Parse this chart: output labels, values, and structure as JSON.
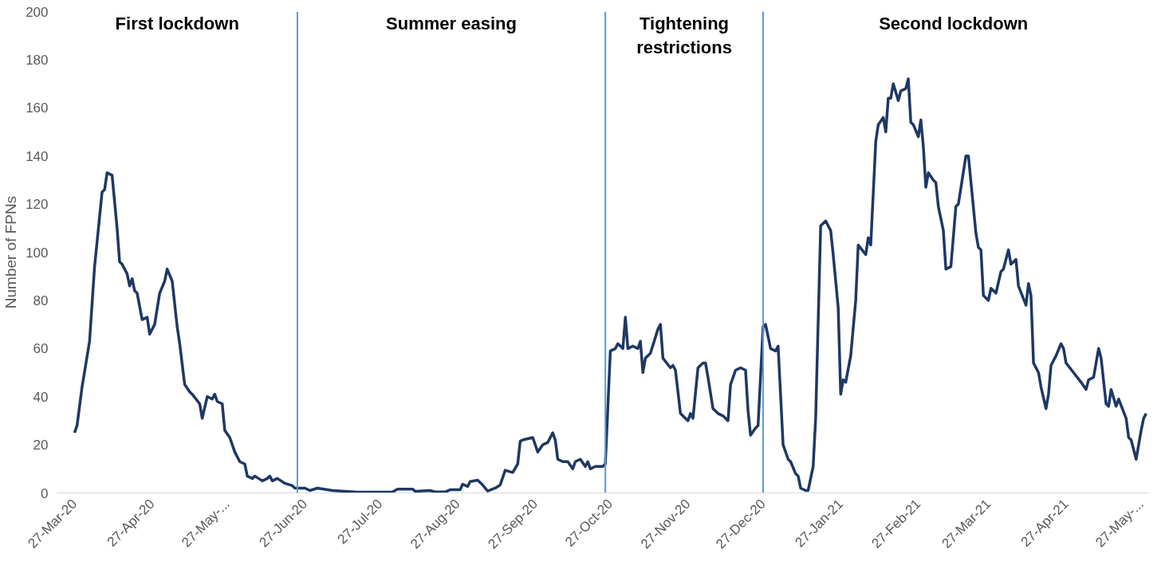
{
  "chart_data": {
    "type": "line",
    "ylabel": "Number of FPNs",
    "x": [
      "2020-03-27",
      "2020-03-28",
      "2020-03-30",
      "2020-04-02",
      "2020-04-04",
      "2020-04-07",
      "2020-04-08",
      "2020-04-09",
      "2020-04-11",
      "2020-04-13",
      "2020-04-14",
      "2020-04-15",
      "2020-04-17",
      "2020-04-18",
      "2020-04-19",
      "2020-04-20",
      "2020-04-21",
      "2020-04-23",
      "2020-04-25",
      "2020-04-26",
      "2020-04-28",
      "2020-04-30",
      "2020-05-02",
      "2020-05-03",
      "2020-05-05",
      "2020-05-07",
      "2020-05-08",
      "2020-05-10",
      "2020-05-12",
      "2020-05-13",
      "2020-05-16",
      "2020-05-17",
      "2020-05-19",
      "2020-05-21",
      "2020-05-22",
      "2020-05-23",
      "2020-05-25",
      "2020-05-26",
      "2020-05-28",
      "2020-05-30",
      "2020-06-01",
      "2020-06-03",
      "2020-06-04",
      "2020-06-06",
      "2020-06-07",
      "2020-06-10",
      "2020-06-12",
      "2020-06-13",
      "2020-06-14",
      "2020-06-16",
      "2020-06-19",
      "2020-06-22",
      "2020-06-23",
      "2020-06-27",
      "2020-06-29",
      "2020-07-02",
      "2020-07-08",
      "2020-07-17",
      "2020-07-30",
      "2020-08-01",
      "2020-08-03",
      "2020-08-09",
      "2020-08-10",
      "2020-08-16",
      "2020-08-18",
      "2020-08-22",
      "2020-08-24",
      "2020-08-28",
      "2020-08-29",
      "2020-08-31",
      "2020-09-01",
      "2020-09-04",
      "2020-09-06",
      "2020-09-08",
      "2020-09-11",
      "2020-09-13",
      "2020-09-15",
      "2020-09-18",
      "2020-09-20",
      "2020-09-21",
      "2020-09-22",
      "2020-09-26",
      "2020-09-28",
      "2020-09-30",
      "2020-10-02",
      "2020-10-04",
      "2020-10-05",
      "2020-10-06",
      "2020-10-08",
      "2020-10-10",
      "2020-10-12",
      "2020-10-13",
      "2020-10-15",
      "2020-10-17",
      "2020-10-18",
      "2020-10-19",
      "2020-10-21",
      "2020-10-24",
      "2020-10-25",
      "2020-10-27",
      "2020-10-29",
      "2020-10-30",
      "2020-11-01",
      "2020-11-02",
      "2020-11-03",
      "2020-11-05",
      "2020-11-07",
      "2020-11-08",
      "2020-11-09",
      "2020-11-10",
      "2020-11-12",
      "2020-11-15",
      "2020-11-16",
      "2020-11-17",
      "2020-11-20",
      "2020-11-21",
      "2020-11-22",
      "2020-11-24",
      "2020-11-27",
      "2020-11-28",
      "2020-11-29",
      "2020-12-01",
      "2020-12-03",
      "2020-12-04",
      "2020-12-05",
      "2020-12-07",
      "2020-12-09",
      "2020-12-11",
      "2020-12-13",
      "2020-12-14",
      "2020-12-16",
      "2020-12-18",
      "2020-12-20",
      "2020-12-21",
      "2020-12-22",
      "2020-12-24",
      "2020-12-25",
      "2020-12-27",
      "2020-12-28",
      "2020-12-30",
      "2021-01-01",
      "2021-01-02",
      "2021-01-04",
      "2021-01-06",
      "2021-01-07",
      "2021-01-09",
      "2021-01-10",
      "2021-01-11",
      "2021-01-13",
      "2021-01-14",
      "2021-01-16",
      "2021-01-17",
      "2021-01-19",
      "2021-01-21",
      "2021-01-23",
      "2021-01-24",
      "2021-01-26",
      "2021-01-27",
      "2021-01-28",
      "2021-01-29",
      "2021-01-31",
      "2021-02-02",
      "2021-02-03",
      "2021-02-06",
      "2021-02-07",
      "2021-02-08",
      "2021-02-10",
      "2021-02-11",
      "2021-02-13",
      "2021-02-14",
      "2021-02-15",
      "2021-02-16",
      "2021-02-17",
      "2021-02-19",
      "2021-02-20",
      "2021-02-22",
      "2021-02-23",
      "2021-02-24",
      "2021-02-25",
      "2021-02-27",
      "2021-02-28",
      "2021-03-01",
      "2021-03-02",
      "2021-03-03",
      "2021-03-05",
      "2021-03-06",
      "2021-03-07",
      "2021-03-09",
      "2021-03-10",
      "2021-03-12",
      "2021-03-14",
      "2021-03-15",
      "2021-03-18",
      "2021-03-19",
      "2021-03-22",
      "2021-03-23",
      "2021-03-24",
      "2021-03-25",
      "2021-03-27",
      "2021-03-28",
      "2021-03-30",
      "2021-04-01",
      "2021-04-02",
      "2021-04-04",
      "2021-04-05",
      "2021-04-07",
      "2021-04-08",
      "2021-04-11",
      "2021-04-12",
      "2021-04-13",
      "2021-04-14",
      "2021-04-16",
      "2021-04-17",
      "2021-04-19",
      "2021-04-20",
      "2021-04-21",
      "2021-04-23",
      "2021-04-25",
      "2021-04-26",
      "2021-04-27",
      "2021-04-30",
      "2021-05-03",
      "2021-05-05",
      "2021-05-06",
      "2021-05-08",
      "2021-05-10",
      "2021-05-11",
      "2021-05-13",
      "2021-05-14",
      "2021-05-15",
      "2021-05-17",
      "2021-05-18",
      "2021-05-21",
      "2021-05-22",
      "2021-05-23",
      "2021-05-25",
      "2021-05-27",
      "2021-05-28",
      "2021-05-29"
    ],
    "series": [
      {
        "color": "#1f3864",
        "values": [
          25,
          28,
          44,
          63,
          94,
          125,
          126,
          133,
          132,
          110,
          96,
          95,
          91,
          86,
          89,
          84,
          83,
          72,
          73,
          66,
          70,
          83,
          88,
          93,
          88,
          69,
          62,
          45,
          42,
          41,
          37,
          31,
          40,
          39,
          41,
          38,
          37,
          26,
          23,
          17,
          13,
          12,
          7,
          6,
          7,
          5,
          6,
          7,
          5,
          6,
          4,
          3,
          2,
          2,
          1,
          2,
          1,
          0.4,
          0.3,
          0.4,
          1.6,
          1.6,
          0.7,
          1,
          0.4,
          0.4,
          1.3,
          1.3,
          3.6,
          2.7,
          4.7,
          5.3,
          3.3,
          0.8,
          2,
          3.3,
          9.4,
          8.5,
          12,
          21.5,
          22,
          23,
          17,
          20,
          21,
          25,
          22,
          14,
          13,
          13,
          10,
          13,
          14,
          11,
          13,
          10,
          11,
          11,
          12,
          59,
          60,
          62,
          60,
          73,
          60,
          61,
          60,
          63,
          50,
          56,
          58,
          68,
          70,
          56,
          52,
          53,
          51,
          33,
          30,
          33,
          31,
          52,
          54,
          54,
          48,
          35,
          33,
          32,
          30,
          45,
          51,
          52,
          51,
          34,
          24,
          27,
          28,
          69,
          70,
          60,
          59,
          61,
          20,
          14,
          13,
          8,
          7,
          2,
          1,
          1,
          11,
          31,
          111,
          113,
          109,
          99,
          77,
          41,
          47,
          46,
          57,
          80,
          103,
          99,
          106,
          103,
          146,
          153,
          156,
          150,
          164,
          164,
          170,
          163,
          167,
          168,
          172,
          154,
          153,
          148,
          155,
          144,
          127,
          133,
          130,
          129,
          119,
          109,
          93,
          94,
          119,
          120,
          140,
          140,
          108,
          102,
          101,
          82,
          80,
          85,
          83,
          92,
          93,
          101,
          95,
          97,
          86,
          78,
          87,
          82,
          54,
          50,
          44,
          35,
          41,
          53,
          57,
          62,
          60,
          54,
          50,
          46,
          43,
          47,
          48,
          60,
          56,
          37,
          36,
          43,
          36,
          39,
          31,
          23,
          22,
          14,
          26,
          31,
          33
        ]
      }
    ],
    "xlim": [
      "2020-03-20",
      "2021-05-30"
    ],
    "xticks": [
      {
        "value": "2020-03-27",
        "label": "27-Mar-20"
      },
      {
        "value": "2020-04-27",
        "label": "27-Apr-20"
      },
      {
        "value": "2020-05-27",
        "label": "27-May-..."
      },
      {
        "value": "2020-06-27",
        "label": "27-Jun-20"
      },
      {
        "value": "2020-07-27",
        "label": "27-Jul-20"
      },
      {
        "value": "2020-08-27",
        "label": "27-Aug-20"
      },
      {
        "value": "2020-09-27",
        "label": "27-Sep-20"
      },
      {
        "value": "2020-10-27",
        "label": "27-Oct-20"
      },
      {
        "value": "2020-11-27",
        "label": "27-Nov-20"
      },
      {
        "value": "2020-12-27",
        "label": "27-Dec-20"
      },
      {
        "value": "2021-01-27",
        "label": "27-Jan-21"
      },
      {
        "value": "2021-02-27",
        "label": "27-Feb-21"
      },
      {
        "value": "2021-03-27",
        "label": "27-Mar-21"
      },
      {
        "value": "2021-04-27",
        "label": "27-Apr-21"
      },
      {
        "value": "2021-05-27",
        "label": "27-May-..."
      }
    ],
    "ylim": [
      0,
      200
    ],
    "yticks": [
      0,
      20,
      40,
      60,
      80,
      100,
      120,
      140,
      160,
      180,
      200
    ],
    "ref_lines": [
      {
        "axis": "x",
        "value": "2020-06-24",
        "color": "#5b9bd5"
      },
      {
        "axis": "x",
        "value": "2020-10-25",
        "color": "#5b9bd5"
      },
      {
        "axis": "x",
        "value": "2020-12-27",
        "color": "#5b9bd5"
      }
    ],
    "annotations": [
      "First lockdown",
      "Summer easing",
      "Tightening\nrestrictions",
      "Second  lockdown"
    ],
    "grid": false
  }
}
